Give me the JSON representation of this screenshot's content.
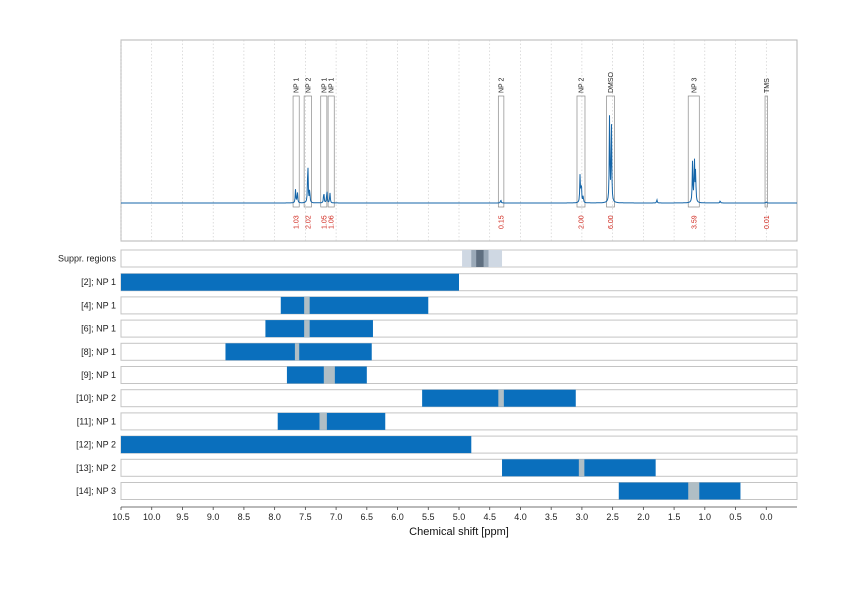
{
  "chart_data": {
    "type": "nmr-spectrum-with-ranges",
    "xlabel": "Chemical shift [ppm]",
    "xlim": [
      10.5,
      -0.5
    ],
    "x_ticks": [
      "10.5",
      "10.0",
      "9.5",
      "9.0",
      "8.5",
      "8.0",
      "7.5",
      "7.0",
      "6.5",
      "6.0",
      "5.5",
      "5.0",
      "4.5",
      "4.0",
      "3.5",
      "3.0",
      "2.5",
      "2.0",
      "1.5",
      "1.0",
      "0.5",
      "0.0"
    ],
    "grid": "vertical dotted",
    "colors": {
      "spectrum": "#1565a8",
      "bar": "#0a6fbd",
      "gap": "#b0bec5",
      "integral": "#d0261c",
      "suppr_light": "#cfd8e3",
      "suppr_mid": "#9aa9b8",
      "suppr_dark": "#5f6f80"
    },
    "spectrum_baseline": 0.0,
    "peaks": [
      {
        "ppm": 7.66,
        "height": 0.12
      },
      {
        "ppm": 7.63,
        "height": 0.1
      },
      {
        "ppm": 7.46,
        "height": 0.38
      },
      {
        "ppm": 7.43,
        "height": 0.12
      },
      {
        "ppm": 7.2,
        "height": 0.1
      },
      {
        "ppm": 7.15,
        "height": 0.11
      },
      {
        "ppm": 7.1,
        "height": 0.09
      },
      {
        "ppm": 4.32,
        "height": 0.03
      },
      {
        "ppm": 3.03,
        "height": 0.25
      },
      {
        "ppm": 3.01,
        "height": 0.18
      },
      {
        "ppm": 2.98,
        "height": 0.06
      },
      {
        "ppm": 2.55,
        "height": 0.78
      },
      {
        "ppm": 2.52,
        "height": 0.72
      },
      {
        "ppm": 1.78,
        "height": 0.03
      },
      {
        "ppm": 1.2,
        "height": 0.36
      },
      {
        "ppm": 1.17,
        "height": 0.4
      },
      {
        "ppm": 1.15,
        "height": 0.28
      },
      {
        "ppm": 0.75,
        "height": 0.02
      },
      {
        "ppm": 0.0,
        "height": 0.01
      }
    ],
    "annotations": [
      {
        "label": "NP 1",
        "from": 7.7,
        "to": 7.6,
        "integral": "1.03"
      },
      {
        "label": "NP 2",
        "from": 7.52,
        "to": 7.4,
        "integral": "2.02"
      },
      {
        "label": "NP 1",
        "from": 7.25,
        "to": 7.15,
        "integral": "1.05"
      },
      {
        "label": "NP 1",
        "from": 7.13,
        "to": 7.03,
        "integral": "1.06"
      },
      {
        "label": "NP 2",
        "from": 4.36,
        "to": 4.27,
        "integral": "0.15"
      },
      {
        "label": "NP 2",
        "from": 3.08,
        "to": 2.95,
        "integral": "2.00"
      },
      {
        "label": "DMSO",
        "from": 2.6,
        "to": 2.47,
        "integral": "6.00"
      },
      {
        "label": "NP 3",
        "from": 1.27,
        "to": 1.09,
        "integral": "3.59"
      },
      {
        "label": "TMS",
        "from": 0.02,
        "to": -0.02,
        "integral": "0.01"
      }
    ],
    "suppression": {
      "label": "Suppr. regions",
      "outer": [
        4.95,
        4.3
      ],
      "inner": [
        4.8,
        4.52
      ],
      "core": [
        4.72,
        4.6
      ]
    },
    "rows": [
      {
        "label": "[2]; NP 1",
        "from": 10.5,
        "to": 5.0,
        "gaps": []
      },
      {
        "label": "[4]; NP 1",
        "from": 7.9,
        "to": 5.5,
        "gaps": [
          [
            7.52,
            7.43
          ]
        ]
      },
      {
        "label": "[6]; NP 1",
        "from": 8.15,
        "to": 6.4,
        "gaps": [
          [
            7.52,
            7.43
          ]
        ]
      },
      {
        "label": "[8]; NP 1",
        "from": 8.8,
        "to": 6.42,
        "gaps": [
          [
            7.67,
            7.6
          ]
        ]
      },
      {
        "label": "[9]; NP 1",
        "from": 7.8,
        "to": 6.5,
        "gaps": [
          [
            7.2,
            7.02
          ]
        ]
      },
      {
        "label": "[10]; NP 2",
        "from": 5.6,
        "to": 3.1,
        "gaps": [
          [
            4.36,
            4.27
          ]
        ]
      },
      {
        "label": "[11]; NP 1",
        "from": 7.95,
        "to": 6.2,
        "gaps": [
          [
            7.27,
            7.15
          ]
        ]
      },
      {
        "label": "[12]; NP 2",
        "from": 10.5,
        "to": 4.8,
        "gaps": []
      },
      {
        "label": "[13]; NP 2",
        "from": 4.3,
        "to": 1.8,
        "gaps": [
          [
            3.05,
            2.96
          ]
        ]
      },
      {
        "label": "[14]; NP 3",
        "from": 2.4,
        "to": 0.42,
        "gaps": [
          [
            1.27,
            1.09
          ]
        ]
      }
    ]
  }
}
